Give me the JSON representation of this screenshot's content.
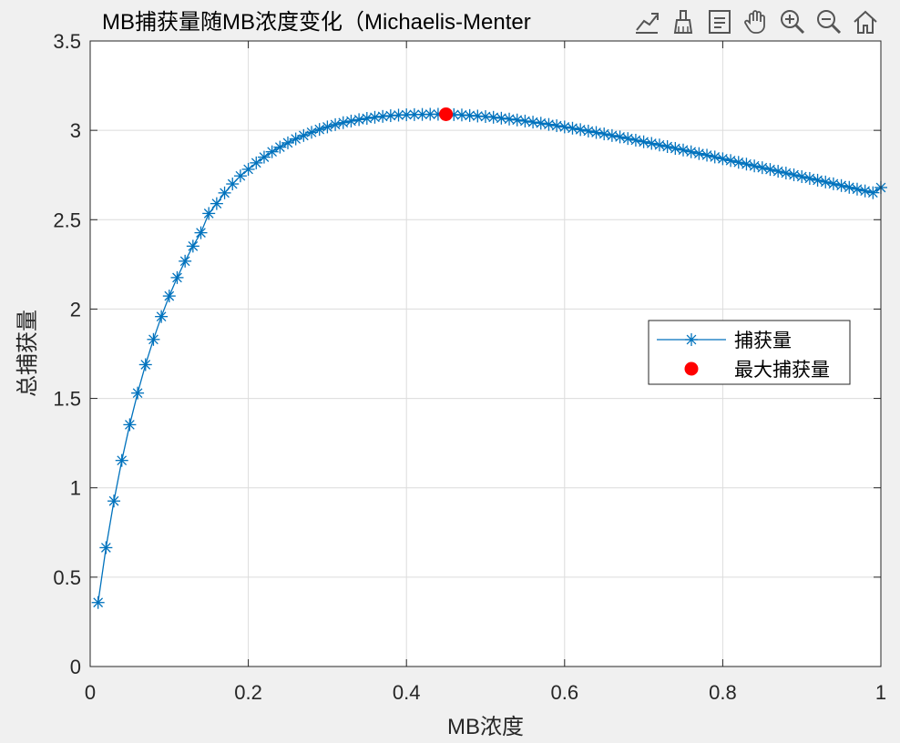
{
  "figure": {
    "title": "MB捕获量随MB浓度变化（Michaelis-Menter",
    "toolbar": [
      {
        "name": "export-icon"
      },
      {
        "name": "brush-icon"
      },
      {
        "name": "datatip-icon"
      },
      {
        "name": "pan-icon"
      },
      {
        "name": "zoom-in-icon"
      },
      {
        "name": "zoom-out-icon"
      },
      {
        "name": "home-icon"
      }
    ]
  },
  "chart_data": {
    "type": "line",
    "title": "MB捕获量随MB浓度变化（Michaelis-Menter",
    "xlabel": "MB浓度",
    "ylabel": "总捕获量",
    "xlim": [
      0,
      1
    ],
    "ylim": [
      0,
      3.5
    ],
    "xticks": [
      "0",
      "0.2",
      "0.4",
      "0.6",
      "0.8",
      "1"
    ],
    "yticks": [
      "0",
      "0.5",
      "1",
      "1.5",
      "2",
      "2.5",
      "3",
      "3.5"
    ],
    "grid": true,
    "legend_position": "right",
    "series": [
      {
        "name": "捕获量",
        "color": "#0072bd",
        "marker": "asterisk",
        "x": [
          0.01,
          0.02,
          0.03,
          0.04,
          0.05,
          0.06,
          0.07,
          0.08,
          0.09,
          0.1,
          0.11,
          0.12,
          0.13,
          0.14,
          0.15,
          0.16,
          0.17,
          0.18,
          0.19,
          0.2,
          0.21,
          0.22,
          0.23,
          0.24,
          0.25,
          0.26,
          0.27,
          0.28,
          0.29,
          0.3,
          0.31,
          0.32,
          0.33,
          0.34,
          0.35,
          0.36,
          0.37,
          0.38,
          0.39,
          0.4,
          0.41,
          0.42,
          0.43,
          0.44,
          0.45,
          0.46,
          0.47,
          0.48,
          0.49,
          0.5,
          0.51,
          0.52,
          0.53,
          0.54,
          0.55,
          0.56,
          0.57,
          0.58,
          0.59,
          0.6,
          0.61,
          0.62,
          0.63,
          0.64,
          0.65,
          0.66,
          0.67,
          0.68,
          0.69,
          0.7,
          0.71,
          0.72,
          0.73,
          0.74,
          0.75,
          0.76,
          0.77,
          0.78,
          0.79,
          0.8,
          0.81,
          0.82,
          0.83,
          0.84,
          0.85,
          0.86,
          0.87,
          0.88,
          0.89,
          0.9,
          0.91,
          0.92,
          0.93,
          0.94,
          0.95,
          0.96,
          0.97,
          0.98,
          0.99,
          1.0
        ],
        "y": [
          0.358,
          0.665,
          0.926,
          1.153,
          1.353,
          1.53,
          1.689,
          1.83,
          1.958,
          2.073,
          2.176,
          2.268,
          2.352,
          2.427,
          2.535,
          2.59,
          2.65,
          2.7,
          2.745,
          2.782,
          2.818,
          2.85,
          2.88,
          2.906,
          2.93,
          2.952,
          2.971,
          2.989,
          3.005,
          3.019,
          3.032,
          3.043,
          3.052,
          3.06,
          3.067,
          3.073,
          3.078,
          3.082,
          3.085,
          3.087,
          3.088,
          3.089,
          3.09,
          3.09,
          3.089,
          3.088,
          3.086,
          3.083,
          3.08,
          3.077,
          3.073,
          3.068,
          3.063,
          3.058,
          3.052,
          3.046,
          3.04,
          3.033,
          3.026,
          3.019,
          3.012,
          3.004,
          2.996,
          2.988,
          2.98,
          2.971,
          2.963,
          2.954,
          2.945,
          2.936,
          2.927,
          2.918,
          2.909,
          2.899,
          2.89,
          2.88,
          2.87,
          2.861,
          2.851,
          2.841,
          2.831,
          2.821,
          2.811,
          2.801,
          2.791,
          2.781,
          2.771,
          2.761,
          2.751,
          2.741,
          2.731,
          2.721,
          2.711,
          2.701,
          2.691,
          2.681,
          2.671,
          2.661,
          2.651,
          2.68
        ]
      },
      {
        "name": "最大捕获量",
        "color": "#ff0000",
        "marker": "filled-circle",
        "x": [
          0.45
        ],
        "y": [
          3.09
        ]
      }
    ]
  }
}
